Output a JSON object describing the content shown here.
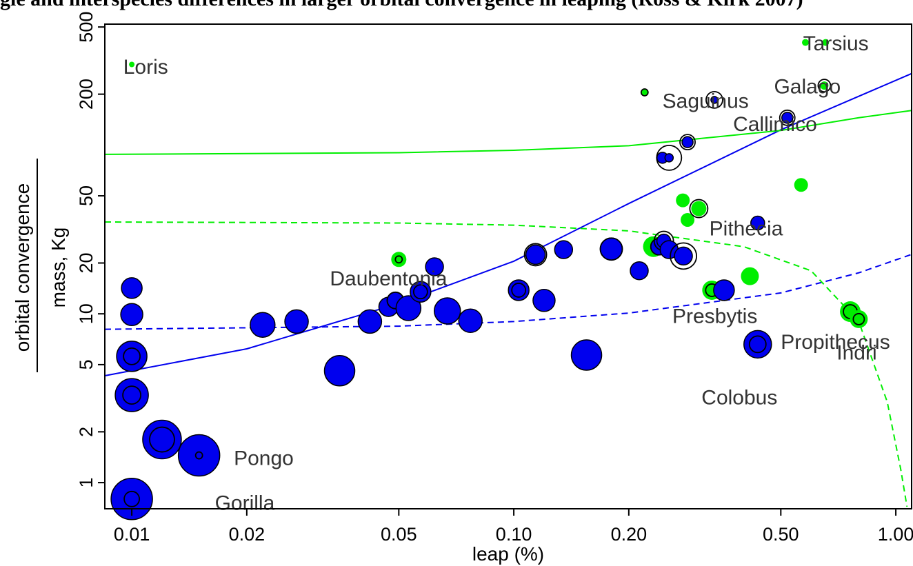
{
  "chart_data": {
    "type": "scatter",
    "title": "gle and interspecies differences in larger orbital convergence in leaping (Ross & Kirk 2007)",
    "xlabel": "leap (%)",
    "ylabel_top": "orbital convergence",
    "ylabel_bottom": "mass, Kg",
    "x_scale": "log",
    "y_scale": "log",
    "xlim": [
      0.0085,
      1.1
    ],
    "ylim": [
      0.7,
      520
    ],
    "x_ticks": [
      {
        "value": 0.01,
        "label": "0.01"
      },
      {
        "value": 0.02,
        "label": "0.02"
      },
      {
        "value": 0.05,
        "label": "0.05"
      },
      {
        "value": 0.1,
        "label": "0.10"
      },
      {
        "value": 0.2,
        "label": "0.20"
      },
      {
        "value": 0.5,
        "label": "0.50"
      },
      {
        "value": 1.0,
        "label": "1.00"
      }
    ],
    "y_ticks": [
      {
        "value": 1,
        "label": "1"
      },
      {
        "value": 2,
        "label": "2"
      },
      {
        "value": 5,
        "label": "5"
      },
      {
        "value": 10,
        "label": "10"
      },
      {
        "value": 20,
        "label": "20"
      },
      {
        "value": 50,
        "label": "50"
      },
      {
        "value": 200,
        "label": "200"
      },
      {
        "value": 500,
        "label": "500"
      }
    ],
    "colors": {
      "group_blue": "#0000ee",
      "group_green": "#00ee00",
      "ring": "#000000",
      "label": "#333333"
    },
    "points": [
      {
        "x": 0.01,
        "y": 0.8,
        "r": 30,
        "ring": 11,
        "color": "blue"
      },
      {
        "x": 0.01,
        "y": 3.3,
        "r": 24,
        "ring": 13,
        "color": "blue"
      },
      {
        "x": 0.01,
        "y": 5.6,
        "r": 22,
        "ring": 12,
        "color": "blue"
      },
      {
        "x": 0.01,
        "y": 9.9,
        "r": 16,
        "ring": 0,
        "color": "blue"
      },
      {
        "x": 0.01,
        "y": 14.2,
        "r": 15,
        "ring": 0,
        "color": "blue"
      },
      {
        "x": 0.01,
        "y": 300,
        "r": 4,
        "ring": 0,
        "color": "green"
      },
      {
        "x": 0.012,
        "y": 1.8,
        "r": 28,
        "ring": 18,
        "color": "blue"
      },
      {
        "x": 0.015,
        "y": 1.45,
        "r": 30,
        "ring": 5,
        "color": "blue"
      },
      {
        "x": 0.022,
        "y": 8.6,
        "r": 18,
        "ring": 0,
        "color": "blue"
      },
      {
        "x": 0.027,
        "y": 9.0,
        "r": 17,
        "ring": 0,
        "color": "blue"
      },
      {
        "x": 0.035,
        "y": 4.6,
        "r": 22,
        "ring": 0,
        "color": "blue"
      },
      {
        "x": 0.042,
        "y": 9.0,
        "r": 17,
        "ring": 0,
        "color": "blue"
      },
      {
        "x": 0.047,
        "y": 11.0,
        "r": 14,
        "ring": 0,
        "color": "blue"
      },
      {
        "x": 0.049,
        "y": 12.0,
        "r": 12,
        "ring": 12,
        "color": "blue"
      },
      {
        "x": 0.05,
        "y": 21.0,
        "r": 11,
        "ring": 5,
        "color": "green"
      },
      {
        "x": 0.053,
        "y": 10.8,
        "r": 18,
        "ring": 0,
        "color": "blue"
      },
      {
        "x": 0.057,
        "y": 13.5,
        "r": 15,
        "ring": 10,
        "color": "blue"
      },
      {
        "x": 0.062,
        "y": 19.0,
        "r": 13,
        "ring": 0,
        "color": "blue"
      },
      {
        "x": 0.067,
        "y": 10.4,
        "r": 19,
        "ring": 0,
        "color": "blue"
      },
      {
        "x": 0.077,
        "y": 9.1,
        "r": 17,
        "ring": 0,
        "color": "blue"
      },
      {
        "x": 0.103,
        "y": 13.8,
        "r": 15,
        "ring": 10,
        "color": "blue"
      },
      {
        "x": 0.114,
        "y": 22.4,
        "r": 14,
        "ring": 16,
        "color": "blue"
      },
      {
        "x": 0.12,
        "y": 12.0,
        "r": 16,
        "ring": 0,
        "color": "blue"
      },
      {
        "x": 0.135,
        "y": 24.0,
        "r": 13,
        "ring": 0,
        "color": "blue"
      },
      {
        "x": 0.155,
        "y": 5.7,
        "r": 22,
        "ring": 0,
        "color": "blue"
      },
      {
        "x": 0.18,
        "y": 24.2,
        "r": 16,
        "ring": 16,
        "color": "blue"
      },
      {
        "x": 0.213,
        "y": 18.0,
        "r": 13,
        "ring": 0,
        "color": "blue"
      },
      {
        "x": 0.22,
        "y": 205,
        "r": 5,
        "ring": 5,
        "color": "green"
      },
      {
        "x": 0.232,
        "y": 25.0,
        "r": 15,
        "ring": 0,
        "color": "green"
      },
      {
        "x": 0.24,
        "y": 25.0,
        "r": 12,
        "ring": 12,
        "color": "blue"
      },
      {
        "x": 0.245,
        "y": 84.0,
        "r": 8,
        "ring": 0,
        "color": "blue"
      },
      {
        "x": 0.247,
        "y": 27.0,
        "r": 10,
        "ring": 14,
        "color": "blue"
      },
      {
        "x": 0.255,
        "y": 84.0,
        "r": 6,
        "ring": 18,
        "color": "blue"
      },
      {
        "x": 0.255,
        "y": 24.0,
        "r": 13,
        "ring": 0,
        "color": "blue"
      },
      {
        "x": 0.277,
        "y": 47.0,
        "r": 10,
        "ring": 0,
        "color": "green"
      },
      {
        "x": 0.278,
        "y": 22.0,
        "r": 13,
        "ring": 19,
        "color": "blue"
      },
      {
        "x": 0.285,
        "y": 36.0,
        "r": 10,
        "ring": 0,
        "color": "green"
      },
      {
        "x": 0.285,
        "y": 104,
        "r": 8,
        "ring": 11,
        "color": "blue"
      },
      {
        "x": 0.305,
        "y": 42.0,
        "r": 11,
        "ring": 13,
        "color": "green"
      },
      {
        "x": 0.33,
        "y": 13.8,
        "r": 14,
        "ring": 9,
        "color": "green"
      },
      {
        "x": 0.335,
        "y": 185,
        "r": 5,
        "ring": 12,
        "color": "blue"
      },
      {
        "x": 0.355,
        "y": 13.8,
        "r": 15,
        "ring": 0,
        "color": "blue"
      },
      {
        "x": 0.415,
        "y": 16.7,
        "r": 13,
        "ring": 0,
        "color": "green"
      },
      {
        "x": 0.435,
        "y": 34.5,
        "r": 10,
        "ring": 0,
        "color": "blue"
      },
      {
        "x": 0.435,
        "y": 6.6,
        "r": 20,
        "ring": 12,
        "color": "blue"
      },
      {
        "x": 0.52,
        "y": 145,
        "r": 8,
        "ring": 11,
        "color": "blue"
      },
      {
        "x": 0.565,
        "y": 58.0,
        "r": 10,
        "ring": 0,
        "color": "green"
      },
      {
        "x": 0.58,
        "y": 405,
        "r": 5,
        "ring": 0,
        "color": "green"
      },
      {
        "x": 0.655,
        "y": 405,
        "r": 5,
        "ring": 0,
        "color": "green"
      },
      {
        "x": 0.65,
        "y": 225,
        "r": 6,
        "ring": 9,
        "color": "green"
      },
      {
        "x": 0.76,
        "y": 10.3,
        "r": 15,
        "ring": 10,
        "color": "green"
      },
      {
        "x": 0.8,
        "y": 9.3,
        "r": 13,
        "ring": 8,
        "color": "green"
      }
    ],
    "labels": [
      {
        "text": "Loris",
        "x": 0.0095,
        "y": 290,
        "anchor": "start"
      },
      {
        "text": "Tarsius",
        "x": 0.572,
        "y": 400,
        "anchor": "start"
      },
      {
        "text": "Galago",
        "x": 0.48,
        "y": 222,
        "anchor": "start"
      },
      {
        "text": "Saguinus",
        "x": 0.245,
        "y": 182,
        "anchor": "start"
      },
      {
        "text": "Callimico",
        "x": 0.375,
        "y": 133,
        "anchor": "start"
      },
      {
        "text": "Pithecia",
        "x": 0.325,
        "y": 32,
        "anchor": "start"
      },
      {
        "text": "Daubentonia",
        "x": 0.033,
        "y": 16.2,
        "anchor": "start"
      },
      {
        "text": "Presbytis",
        "x": 0.26,
        "y": 9.7,
        "anchor": "start"
      },
      {
        "text": "Propithecus",
        "x": 0.5,
        "y": 6.8,
        "anchor": "start"
      },
      {
        "text": "Indri",
        "x": 0.7,
        "y": 5.9,
        "anchor": "start"
      },
      {
        "text": "Colobus",
        "x": 0.31,
        "y": 3.2,
        "anchor": "start"
      },
      {
        "text": "Pongo",
        "x": 0.0185,
        "y": 1.4,
        "anchor": "start"
      },
      {
        "text": "Gorilla",
        "x": 0.0165,
        "y": 0.76,
        "anchor": "start"
      }
    ],
    "curves": [
      {
        "name": "blue solid",
        "color": "#0000ee",
        "dash": false,
        "points": [
          [
            0.0085,
            4.3
          ],
          [
            0.02,
            6.2
          ],
          [
            0.05,
            11.5
          ],
          [
            0.1,
            20.5
          ],
          [
            0.2,
            45
          ],
          [
            0.5,
            123
          ],
          [
            1.1,
            265
          ]
        ]
      },
      {
        "name": "green solid",
        "color": "#00ee00",
        "dash": false,
        "points": [
          [
            0.0085,
            88
          ],
          [
            0.05,
            90
          ],
          [
            0.1,
            93
          ],
          [
            0.2,
            99
          ],
          [
            0.5,
            122
          ],
          [
            0.8,
            145
          ],
          [
            1.1,
            160
          ]
        ]
      },
      {
        "name": "blue dashed",
        "color": "#0000ee",
        "dash": true,
        "points": [
          [
            0.0085,
            8.1
          ],
          [
            0.05,
            8.45
          ],
          [
            0.1,
            9.0
          ],
          [
            0.2,
            10.1
          ],
          [
            0.5,
            13.3
          ],
          [
            0.8,
            17.5
          ],
          [
            1.1,
            22.5
          ]
        ]
      },
      {
        "name": "green dashed",
        "color": "#00ee00",
        "dash": true,
        "points": [
          [
            0.0085,
            35
          ],
          [
            0.05,
            34.5
          ],
          [
            0.1,
            33.5
          ],
          [
            0.2,
            31
          ],
          [
            0.4,
            25
          ],
          [
            0.6,
            18
          ],
          [
            0.8,
            9
          ],
          [
            0.95,
            3
          ],
          [
            1.03,
            1.2
          ],
          [
            1.07,
            0.72
          ]
        ]
      }
    ]
  }
}
